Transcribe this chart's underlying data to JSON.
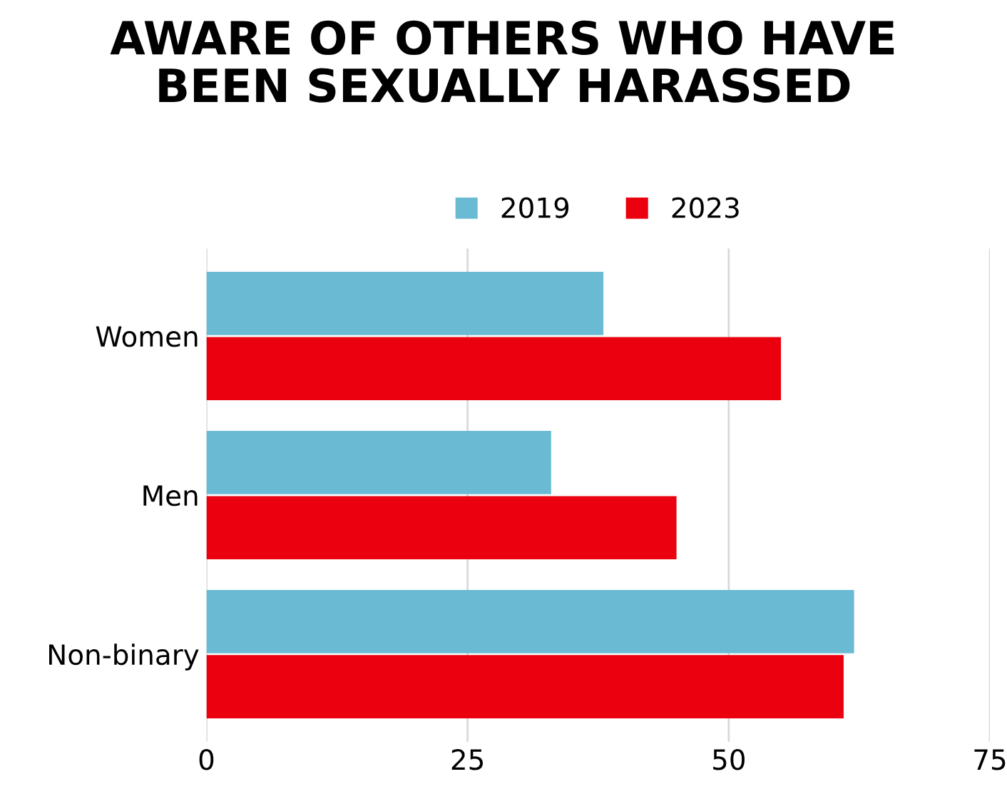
{
  "chart_data": {
    "type": "bar",
    "orientation": "horizontal",
    "title": "AWARE OF OTHERS WHO HAVE\nBEEN SEXUALLY HARASSED",
    "categories": [
      "Women",
      "Men",
      "Non-binary"
    ],
    "series": [
      {
        "name": "2019",
        "color": "#6bbad4",
        "values": [
          38,
          33,
          62
        ]
      },
      {
        "name": "2023",
        "color": "#ea000e",
        "values": [
          55,
          45,
          61
        ]
      }
    ],
    "xlim": [
      0,
      75
    ],
    "xticks": [
      0,
      25,
      50,
      75
    ],
    "grid": "x",
    "legend": "top"
  }
}
